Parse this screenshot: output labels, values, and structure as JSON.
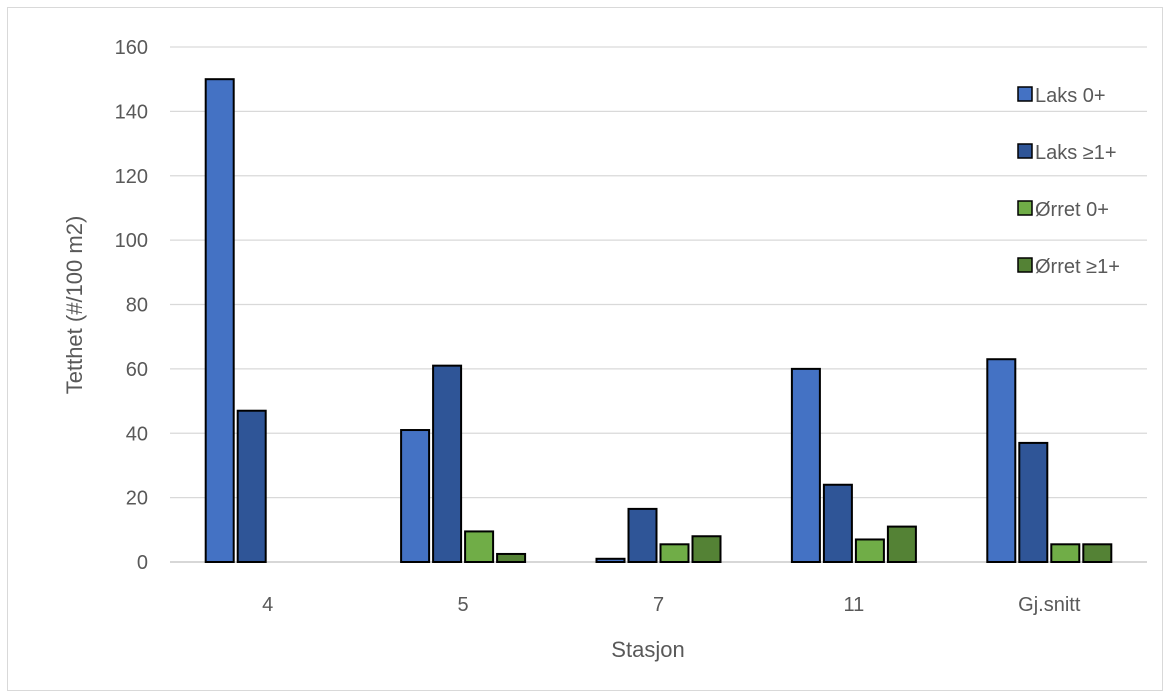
{
  "chart_data": {
    "type": "bar",
    "title": "",
    "xlabel": "Stasjon",
    "ylabel": "Tetthet (#/100 m2)",
    "categories": [
      "4",
      "5",
      "7",
      "11",
      "Gj.snitt"
    ],
    "ylim": [
      0,
      160
    ],
    "yticks": [
      0,
      20,
      40,
      60,
      80,
      100,
      120,
      140,
      160
    ],
    "grid": true,
    "legend_position": "right",
    "series": [
      {
        "name": "Laks 0+",
        "color": "#4472c4",
        "values": [
          150,
          41,
          1,
          60,
          63
        ]
      },
      {
        "name": "Laks ≥1+",
        "color": "#2f5597",
        "values": [
          47,
          61,
          16.5,
          24,
          37
        ]
      },
      {
        "name": "Ørret 0+",
        "color": "#70ad47",
        "values": [
          0,
          9.5,
          5.5,
          7,
          5.5
        ]
      },
      {
        "name": "Ørret ≥1+",
        "color": "#548235",
        "values": [
          0,
          2.5,
          8,
          11,
          5.5
        ]
      }
    ]
  }
}
